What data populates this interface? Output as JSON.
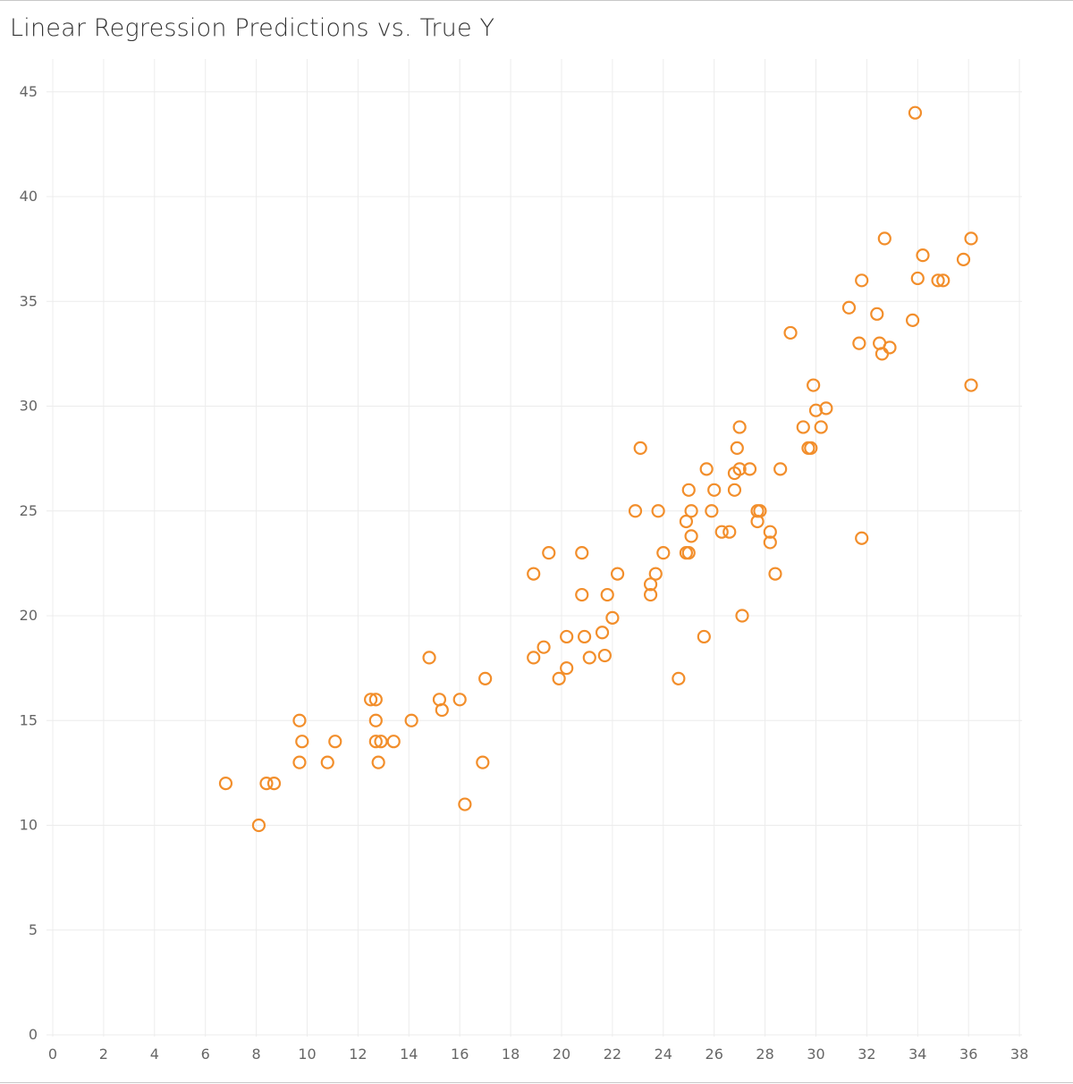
{
  "title": "Linear Regression Predictions vs. True Y",
  "chart_data": {
    "type": "scatter",
    "title": "Linear Regression Predictions vs. True Y",
    "xlabel": "",
    "ylabel": "",
    "xlim": [
      0,
      38
    ],
    "ylim": [
      0,
      45
    ],
    "x_ticks": [
      "0",
      "2",
      "4",
      "6",
      "8",
      "10",
      "12",
      "14",
      "16",
      "18",
      "20",
      "22",
      "24",
      "26",
      "28",
      "30",
      "32",
      "34",
      "36",
      "38"
    ],
    "y_ticks": [
      "0",
      "5",
      "10",
      "15",
      "20",
      "25",
      "30",
      "35",
      "40",
      "45"
    ],
    "grid": true,
    "marker_color": "#F28E2B",
    "series": [
      {
        "points": [
          [
            6.8,
            12
          ],
          [
            8.1,
            10
          ],
          [
            8.4,
            12
          ],
          [
            8.7,
            12
          ],
          [
            9.7,
            13
          ],
          [
            9.7,
            15
          ],
          [
            9.8,
            14
          ],
          [
            10.8,
            13
          ],
          [
            11.1,
            14
          ],
          [
            12.5,
            16
          ],
          [
            12.7,
            16
          ],
          [
            12.7,
            15
          ],
          [
            12.7,
            14
          ],
          [
            12.8,
            13
          ],
          [
            12.9,
            14
          ],
          [
            13.4,
            14
          ],
          [
            14.1,
            15
          ],
          [
            14.8,
            18
          ],
          [
            15.2,
            16
          ],
          [
            15.3,
            15.5
          ],
          [
            16.0,
            16
          ],
          [
            16.2,
            11
          ],
          [
            16.9,
            13
          ],
          [
            17.0,
            17
          ],
          [
            18.9,
            22
          ],
          [
            18.9,
            18
          ],
          [
            19.3,
            18.5
          ],
          [
            19.5,
            23
          ],
          [
            19.9,
            17
          ],
          [
            20.2,
            19
          ],
          [
            20.2,
            17.5
          ],
          [
            20.8,
            23
          ],
          [
            20.8,
            21
          ],
          [
            20.9,
            19
          ],
          [
            21.1,
            18
          ],
          [
            21.6,
            19.2
          ],
          [
            21.7,
            18.1
          ],
          [
            21.8,
            21
          ],
          [
            22.0,
            19.9
          ],
          [
            22.2,
            22
          ],
          [
            22.9,
            25
          ],
          [
            23.1,
            28
          ],
          [
            23.5,
            21
          ],
          [
            23.5,
            21.5
          ],
          [
            23.7,
            22
          ],
          [
            23.8,
            25
          ],
          [
            24.0,
            23
          ],
          [
            24.6,
            17
          ],
          [
            24.9,
            24.5
          ],
          [
            24.9,
            23
          ],
          [
            25.0,
            23
          ],
          [
            25.0,
            26
          ],
          [
            25.1,
            25
          ],
          [
            25.1,
            23.8
          ],
          [
            25.6,
            19
          ],
          [
            25.7,
            27
          ],
          [
            25.9,
            25
          ],
          [
            26.0,
            26
          ],
          [
            26.3,
            24
          ],
          [
            26.6,
            24
          ],
          [
            26.8,
            26.8
          ],
          [
            26.8,
            26
          ],
          [
            26.9,
            28
          ],
          [
            27.0,
            29
          ],
          [
            27.0,
            27
          ],
          [
            27.1,
            20
          ],
          [
            27.4,
            27
          ],
          [
            27.7,
            25
          ],
          [
            27.7,
            24.5
          ],
          [
            27.8,
            25
          ],
          [
            28.2,
            24
          ],
          [
            28.2,
            23.5
          ],
          [
            28.4,
            22
          ],
          [
            28.6,
            27
          ],
          [
            29.0,
            33.5
          ],
          [
            29.5,
            29
          ],
          [
            29.7,
            28
          ],
          [
            29.8,
            28
          ],
          [
            29.9,
            31
          ],
          [
            30.0,
            29.8
          ],
          [
            30.2,
            29
          ],
          [
            30.4,
            29.9
          ],
          [
            31.3,
            34.7
          ],
          [
            31.7,
            33
          ],
          [
            31.8,
            36
          ],
          [
            31.8,
            23.7
          ],
          [
            32.4,
            34.4
          ],
          [
            32.5,
            33
          ],
          [
            32.6,
            32.5
          ],
          [
            32.7,
            38
          ],
          [
            32.9,
            32.8
          ],
          [
            33.8,
            34.1
          ],
          [
            33.9,
            44
          ],
          [
            34.0,
            36.1
          ],
          [
            34.2,
            37.2
          ],
          [
            34.8,
            36
          ],
          [
            35.0,
            36
          ],
          [
            35.8,
            37
          ],
          [
            36.1,
            38
          ],
          [
            36.1,
            31
          ]
        ]
      }
    ]
  }
}
